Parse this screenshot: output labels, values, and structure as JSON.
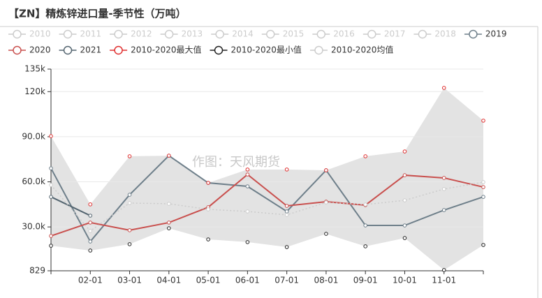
{
  "chart_data": {
    "type": "line",
    "title": "【ZN】精炼锌进口量-季节性（万吨）",
    "watermark": "作图：天风期货",
    "categories": [
      null,
      "02-01",
      "03-01",
      "04-01",
      "05-01",
      "06-01",
      "07-01",
      "08-01",
      "09-01",
      "10-01",
      "11-01",
      null
    ],
    "ylim": [
      829,
      135000
    ],
    "yticks": [
      829,
      {
        "value": 30000,
        "label": "30.0k"
      },
      {
        "value": 60000,
        "label": "60.0k"
      },
      {
        "value": 90000,
        "label": "90.0k"
      },
      {
        "value": 120000,
        "label": "120k"
      },
      {
        "value": 135000,
        "label": "135k"
      }
    ],
    "grid": true,
    "legend": "top-left",
    "band_color": "#e3e3e3",
    "series": [
      {
        "name": "2010",
        "color": "#cccccc",
        "hidden": true
      },
      {
        "name": "2011",
        "color": "#cccccc",
        "hidden": true
      },
      {
        "name": "2012",
        "color": "#cccccc",
        "hidden": true
      },
      {
        "name": "2013",
        "color": "#cccccc",
        "hidden": true
      },
      {
        "name": "2014",
        "color": "#cccccc",
        "hidden": true
      },
      {
        "name": "2015",
        "color": "#cccccc",
        "hidden": true
      },
      {
        "name": "2016",
        "color": "#cccccc",
        "hidden": true
      },
      {
        "name": "2017",
        "color": "#cccccc",
        "hidden": true
      },
      {
        "name": "2018",
        "color": "#cccccc",
        "hidden": true
      },
      {
        "name": "2019",
        "color": "#6e7f8a",
        "values": [
          69000,
          20300,
          51400,
          77400,
          59300,
          57000,
          40300,
          67700,
          31000,
          31000,
          41200,
          50000
        ]
      },
      {
        "name": "2020",
        "color": "#c9504e",
        "values": [
          24000,
          32900,
          27800,
          32900,
          43100,
          64900,
          44000,
          46800,
          44500,
          64400,
          62600,
          56500
        ]
      },
      {
        "name": "2021",
        "color": "#546570",
        "values": [
          50000,
          37500,
          null,
          null,
          null,
          null,
          null,
          null,
          null,
          null,
          null,
          null
        ]
      },
      {
        "name": "2010-2020最大值",
        "color": "#e03030",
        "role": "max",
        "values": [
          90400,
          45000,
          77000,
          77400,
          59300,
          68200,
          68200,
          67700,
          77000,
          80200,
          122500,
          100700
        ]
      },
      {
        "name": "2010-2020最小值",
        "color": "#222222",
        "role": "min",
        "values": [
          17500,
          14300,
          18500,
          29100,
          21700,
          19900,
          16600,
          25400,
          17100,
          22600,
          1300,
          18000
        ]
      },
      {
        "name": "2010-2020均值",
        "color": "#cccccc",
        "role": "mean",
        "values": [
          57900,
          27300,
          45900,
          45400,
          41700,
          40300,
          38000,
          46300,
          44900,
          47700,
          55200,
          59800
        ]
      }
    ]
  }
}
